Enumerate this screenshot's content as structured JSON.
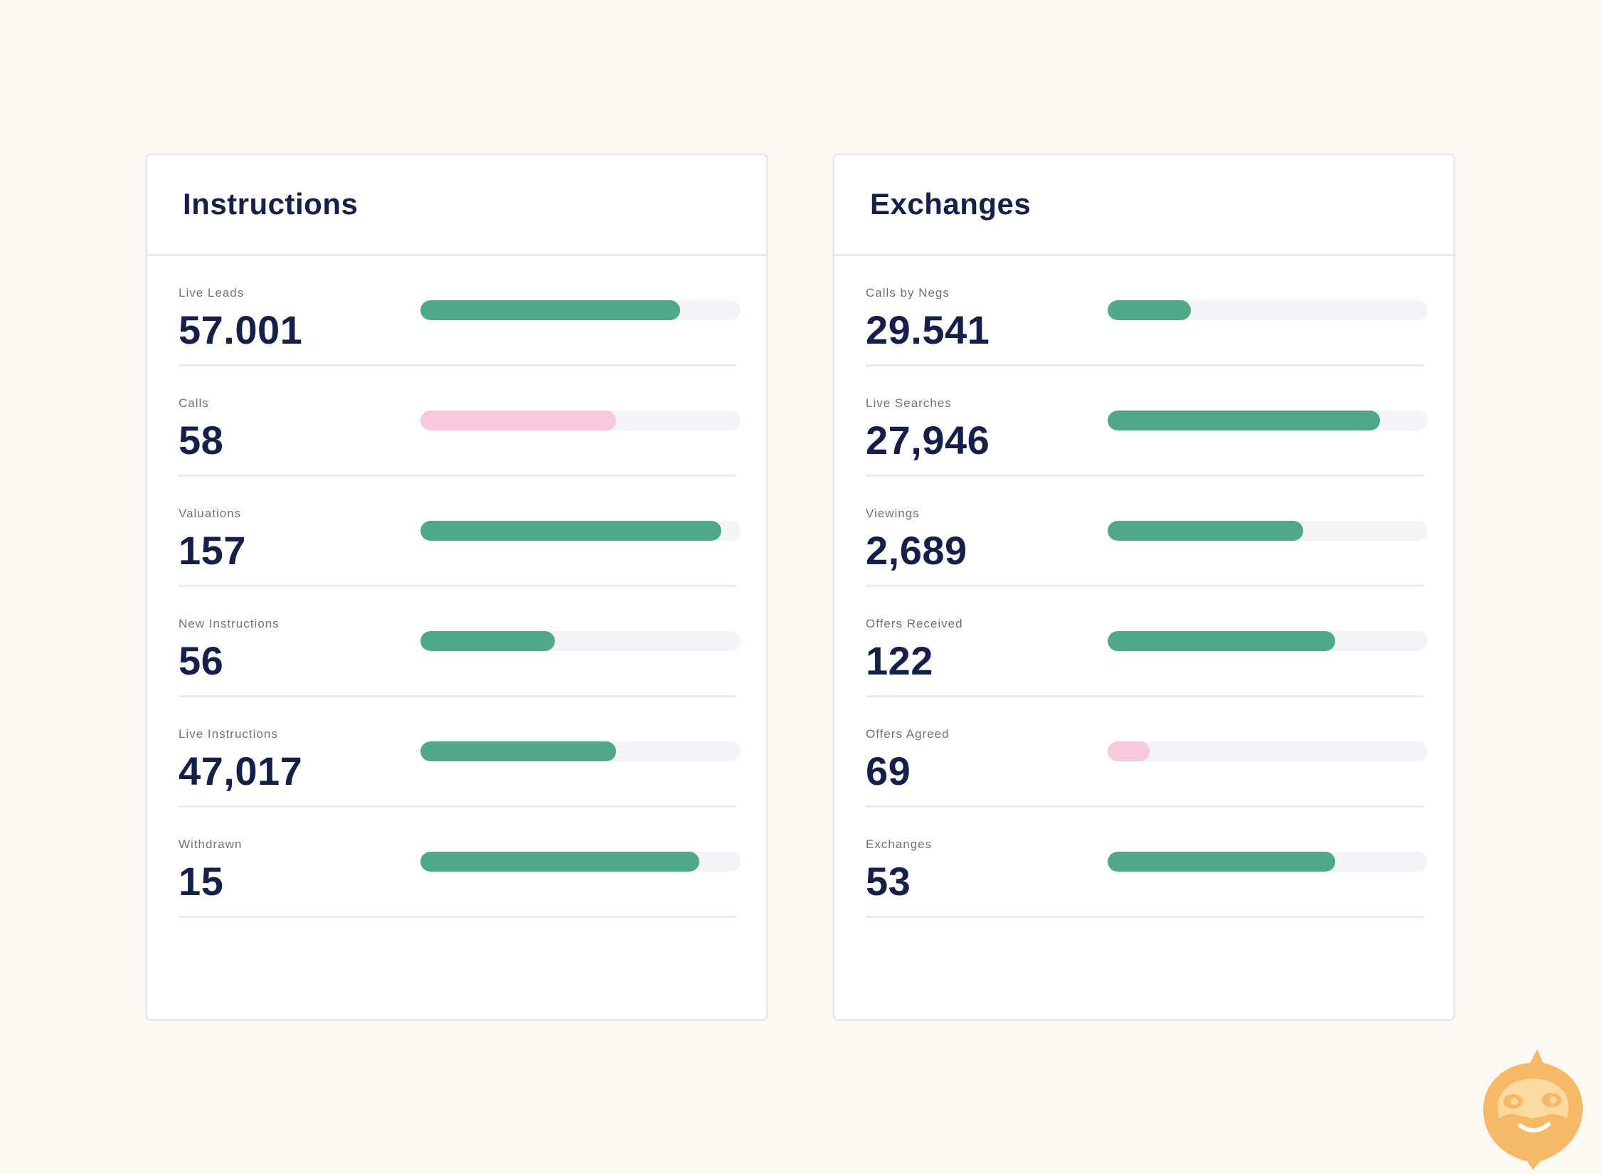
{
  "colors": {
    "green": "#4fa887",
    "pink": "#f8c8dc",
    "track": "#f2f4f8",
    "background": "#fef8f2",
    "title": "#14204a"
  },
  "panels": [
    {
      "title": "Instructions",
      "rows": [
        {
          "label": "Live Leads",
          "value": "57.001",
          "progress": 0.81,
          "color": "green"
        },
        {
          "label": "Calls",
          "value": "58",
          "progress": 0.61,
          "color": "pink"
        },
        {
          "label": "Valuations",
          "value": "157",
          "progress": 0.94,
          "color": "green"
        },
        {
          "label": "New Instructions",
          "value": "56",
          "progress": 0.42,
          "color": "green"
        },
        {
          "label": "Live Instructions",
          "value": "47,017",
          "progress": 0.61,
          "color": "green"
        },
        {
          "label": "Withdrawn",
          "value": "15",
          "progress": 0.87,
          "color": "green"
        }
      ]
    },
    {
      "title": "Exchanges",
      "rows": [
        {
          "label": "Calls by Negs",
          "value": "29.541",
          "progress": 0.26,
          "color": "green"
        },
        {
          "label": "Live Searches",
          "value": "27,946",
          "progress": 0.85,
          "color": "green"
        },
        {
          "label": "Viewings",
          "value": "2,689",
          "progress": 0.61,
          "color": "green"
        },
        {
          "label": "Offers Received",
          "value": "122",
          "progress": 0.71,
          "color": "green"
        },
        {
          "label": "Offers Agreed",
          "value": "69",
          "progress": 0.13,
          "color": "pink"
        },
        {
          "label": "Exchanges",
          "value": "53",
          "progress": 0.71,
          "color": "green"
        }
      ]
    }
  ],
  "mascot": {
    "icon": "mascot-face-icon",
    "color": "#f6b965"
  }
}
